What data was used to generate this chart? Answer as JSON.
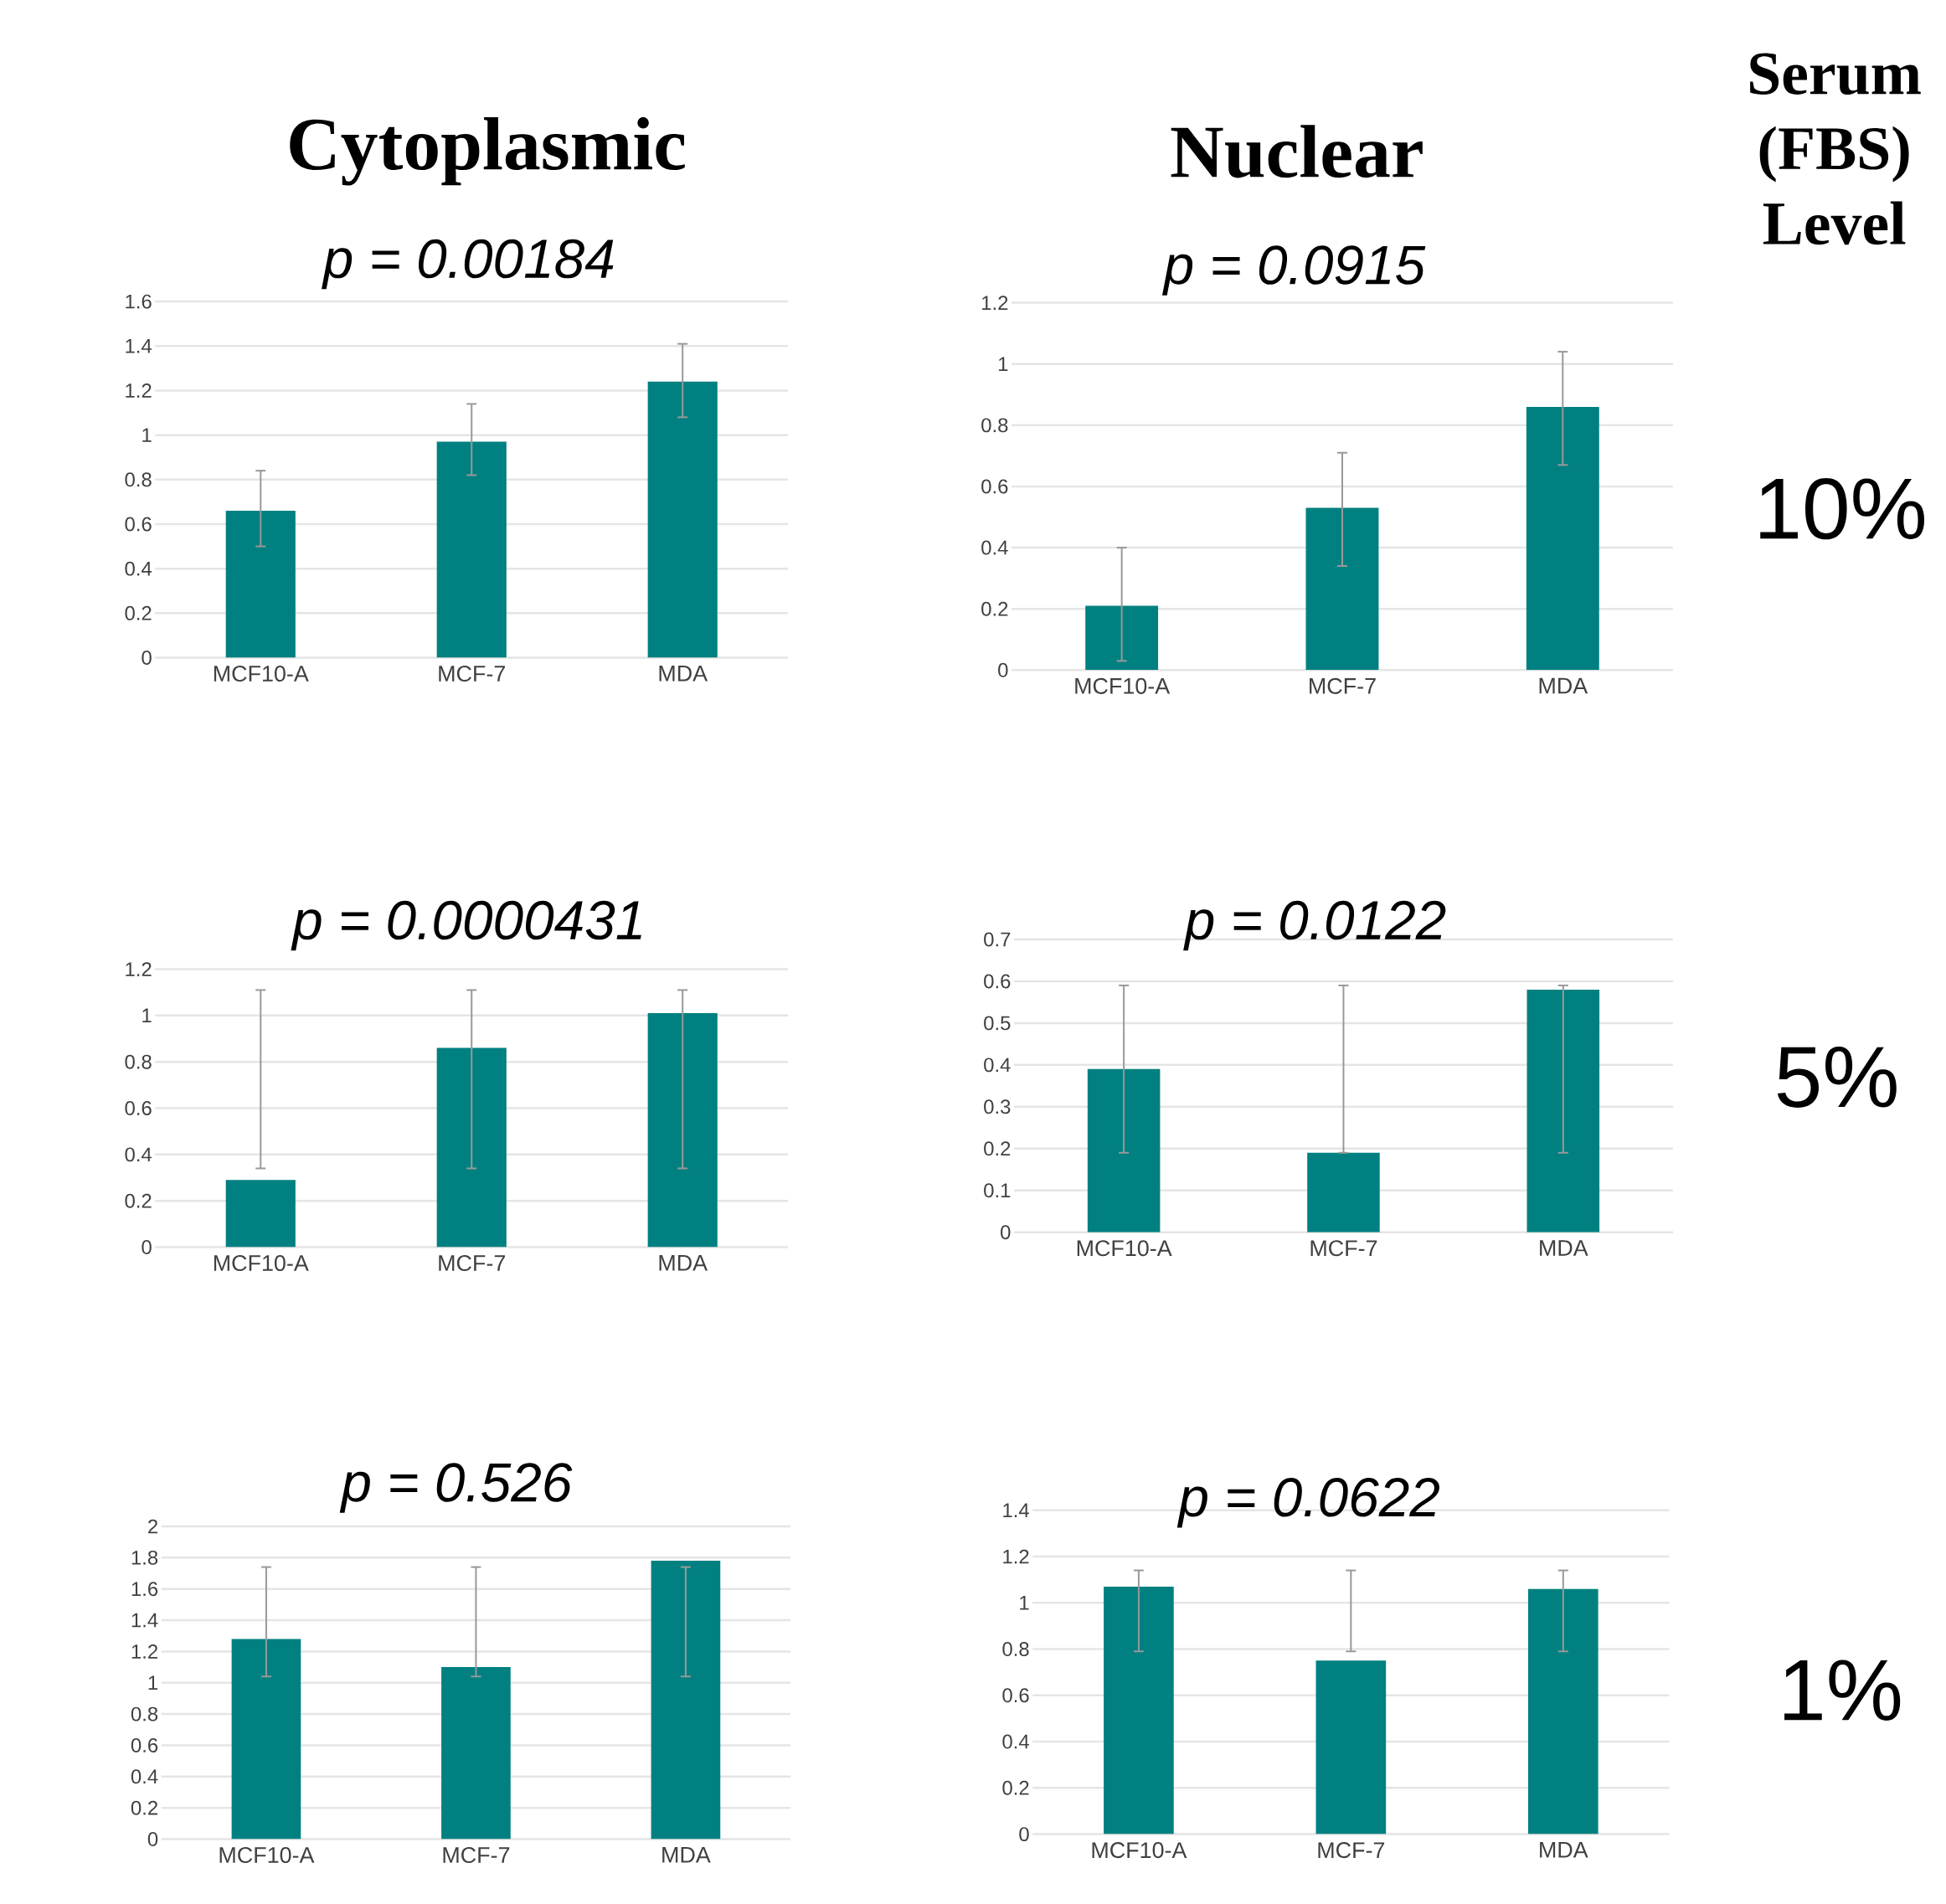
{
  "chart_data": [
    {
      "type": "bar",
      "title": "p = 0.00184",
      "categories": [
        "MCF10-A",
        "MCF-7",
        "MDA"
      ],
      "values": [
        0.66,
        0.97,
        1.24
      ],
      "errors": [
        [
          0.5,
          0.84
        ],
        [
          0.82,
          1.14
        ],
        [
          1.08,
          1.41
        ]
      ],
      "color": "#008080",
      "ylim": [
        0,
        1.6
      ],
      "yticks": [
        0,
        0.2,
        0.4,
        0.6,
        0.8,
        1,
        1.2,
        1.4,
        1.6
      ],
      "grid": "y"
    },
    {
      "type": "bar",
      "title": "p = 0.0915",
      "categories": [
        "MCF10-A",
        "MCF-7",
        "MDA"
      ],
      "values": [
        0.21,
        0.53,
        0.86
      ],
      "errors": [
        [
          0.03,
          0.4
        ],
        [
          0.34,
          0.71
        ],
        [
          0.67,
          1.04
        ]
      ],
      "color": "#008080",
      "ylim": [
        0,
        1.2
      ],
      "yticks": [
        0,
        0.2,
        0.4,
        0.6,
        0.8,
        1,
        1.2
      ],
      "grid": "y"
    },
    {
      "type": "bar",
      "title": "p = 0.0000431",
      "categories": [
        "MCF10-A",
        "MCF-7",
        "MDA"
      ],
      "values": [
        0.29,
        0.86,
        1.01
      ],
      "errors": [
        [
          0.34,
          1.11
        ],
        [
          0.34,
          1.11
        ],
        [
          0.34,
          1.11
        ]
      ],
      "color": "#008080",
      "ylim": [
        0,
        1.2
      ],
      "yticks": [
        0,
        0.2,
        0.4,
        0.6,
        0.8,
        1,
        1.2
      ],
      "grid": "y"
    },
    {
      "type": "bar",
      "title": "p = 0.0122",
      "categories": [
        "MCF10-A",
        "MCF-7",
        "MDA"
      ],
      "values": [
        0.39,
        0.19,
        0.58
      ],
      "errors": [
        [
          0.19,
          0.59
        ],
        [
          0.19,
          0.59
        ],
        [
          0.19,
          0.59
        ]
      ],
      "color": "#008080",
      "ylim": [
        0,
        0.7
      ],
      "yticks": [
        0,
        0.1,
        0.2,
        0.3,
        0.4,
        0.5,
        0.6,
        0.7
      ],
      "grid": "y"
    },
    {
      "type": "bar",
      "title": "p = 0.526",
      "categories": [
        "MCF10-A",
        "MCF-7",
        "MDA"
      ],
      "values": [
        1.28,
        1.1,
        1.78
      ],
      "errors": [
        [
          1.04,
          1.74
        ],
        [
          1.04,
          1.74
        ],
        [
          1.04,
          1.74
        ]
      ],
      "color": "#008080",
      "ylim": [
        0,
        2
      ],
      "yticks": [
        0,
        0.2,
        0.4,
        0.6,
        0.8,
        1,
        1.2,
        1.4,
        1.6,
        1.8,
        2
      ],
      "grid": "y"
    },
    {
      "type": "bar",
      "title": "p = 0.0622",
      "categories": [
        "MCF10-A",
        "MCF-7",
        "MDA"
      ],
      "values": [
        1.07,
        0.75,
        1.06
      ],
      "errors": [
        [
          0.79,
          1.14
        ],
        [
          0.79,
          1.14
        ],
        [
          0.79,
          1.14
        ]
      ],
      "color": "#008080",
      "ylim": [
        0,
        1.4
      ],
      "yticks": [
        0,
        0.2,
        0.4,
        0.6,
        0.8,
        1,
        1.2,
        1.4
      ],
      "grid": "y"
    },
    {
      "type": "other",
      "annotations": [
        "Cytoplasmic",
        "Nuclear",
        "Serum (FBS) Level",
        "10%",
        "5%",
        "1%"
      ]
    }
  ]
}
